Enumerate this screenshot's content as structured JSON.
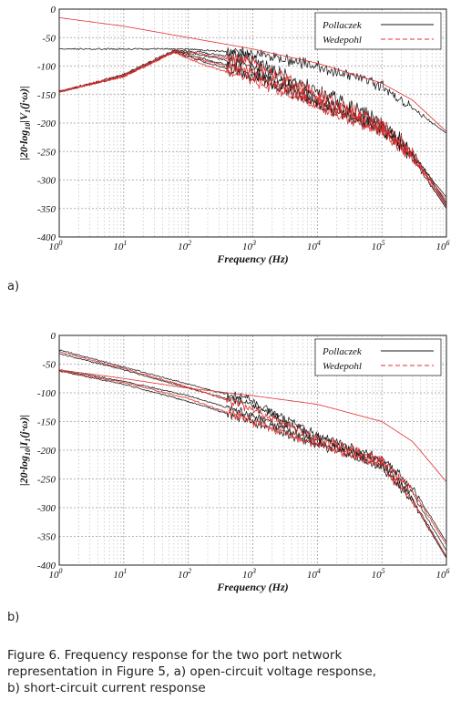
{
  "chart_data": [
    {
      "type": "line",
      "panel_label": "a)",
      "xlabel": "Frequency (Hz)",
      "ylabel_main": "|20·log",
      "ylabel_sub": "10",
      "ylabel_tail": "|V",
      "ylabel_sub2": "1",
      "ylabel_end": "(j·ω)|",
      "xscale": "log",
      "xlim": [
        1,
        1000000
      ],
      "ylim": [
        -400,
        0
      ],
      "x_tick_labels": [
        {
          "base": "10",
          "exp": "0"
        },
        {
          "base": "10",
          "exp": "1"
        },
        {
          "base": "10",
          "exp": "2"
        },
        {
          "base": "10",
          "exp": "3"
        },
        {
          "base": "10",
          "exp": "4"
        },
        {
          "base": "10",
          "exp": "5"
        },
        {
          "base": "10",
          "exp": "6"
        }
      ],
      "y_ticks": [
        0,
        -50,
        -100,
        -150,
        -200,
        -250,
        -300,
        -350,
        -400
      ],
      "y_tick_labels": [
        "0",
        "-50",
        "-100",
        "-150",
        "-200",
        "-250",
        "-300",
        "-350",
        "-400"
      ],
      "grid": true,
      "legend": {
        "placement": "top-right",
        "entries": [
          {
            "label": "Pollaczek",
            "color": "#1a1a1a",
            "dash": "solid"
          },
          {
            "label": "Wedepohl",
            "color": "#e03030",
            "dash": "dashed"
          }
        ]
      },
      "series": [
        {
          "group": "Pollaczek",
          "color": "#1a1a1a",
          "noise": 8,
          "x": [
            1,
            10,
            60,
            150,
            1000,
            5000,
            20000,
            100000,
            300000,
            1000000
          ],
          "y": [
            -145,
            -115,
            -72,
            -75,
            -90,
            -130,
            -160,
            -200,
            -250,
            -340
          ]
        },
        {
          "group": "Pollaczek",
          "color": "#1a1a1a",
          "noise": 8,
          "x": [
            1,
            10,
            60,
            150,
            1000,
            5000,
            20000,
            100000,
            300000,
            1000000
          ],
          "y": [
            -145,
            -117,
            -74,
            -80,
            -100,
            -140,
            -172,
            -205,
            -255,
            -345
          ]
        },
        {
          "group": "Pollaczek",
          "color": "#1a1a1a",
          "noise": 8,
          "x": [
            1,
            10,
            60,
            150,
            1000,
            5000,
            20000,
            100000,
            300000,
            1000000
          ],
          "y": [
            -145,
            -116,
            -73,
            -85,
            -110,
            -148,
            -178,
            -212,
            -262,
            -350
          ]
        },
        {
          "group": "Pollaczek",
          "color": "#1a1a1a",
          "noise": 7,
          "x": [
            1,
            10,
            60,
            150,
            1000,
            5000,
            20000,
            100000,
            300000,
            1000000
          ],
          "y": [
            -145,
            -118,
            -75,
            -90,
            -118,
            -150,
            -180,
            -210,
            -258,
            -330
          ]
        },
        {
          "group": "Pollaczek",
          "color": "#1a1a1a",
          "noise": 6,
          "x": [
            1,
            20,
            100,
            1000,
            10000,
            100000,
            1000000
          ],
          "y": [
            -70,
            -70,
            -70,
            -78,
            -100,
            -135,
            -218
          ]
        },
        {
          "group": "Wedepohl",
          "color": "#e03030",
          "noise": 7,
          "x": [
            1,
            10,
            60,
            150,
            1000,
            5000,
            20000,
            100000,
            300000,
            1000000
          ],
          "y": [
            -145,
            -116,
            -73,
            -78,
            -95,
            -133,
            -165,
            -202,
            -252,
            -342
          ]
        },
        {
          "group": "Wedepohl",
          "color": "#e03030",
          "noise": 7,
          "x": [
            1,
            10,
            60,
            150,
            1000,
            5000,
            20000,
            100000,
            300000,
            1000000
          ],
          "y": [
            -145,
            -118,
            -75,
            -88,
            -112,
            -146,
            -176,
            -208,
            -260,
            -348
          ]
        },
        {
          "group": "Wedepohl",
          "color": "#e03030",
          "noise": 6,
          "x": [
            1,
            10,
            60,
            150,
            1000,
            5000,
            20000,
            100000,
            300000,
            1000000
          ],
          "y": [
            -145,
            -119,
            -76,
            -95,
            -125,
            -155,
            -185,
            -215,
            -262,
            -335
          ]
        },
        {
          "group": "Wedepohl",
          "color": "#e03030",
          "noise": 0,
          "x": [
            1,
            10,
            100,
            1000,
            10000,
            100000,
            300000,
            1000000
          ],
          "y": [
            -15,
            -30,
            -50,
            -70,
            -95,
            -130,
            -160,
            -215
          ]
        }
      ]
    },
    {
      "type": "line",
      "panel_label": "b)",
      "xlabel": "Frequency (Hz)",
      "ylabel_main": "|20·log",
      "ylabel_sub": "10",
      "ylabel_tail": "|I",
      "ylabel_sub2": "1",
      "ylabel_end": "(j·ω)|",
      "xscale": "log",
      "xlim": [
        1,
        1000000
      ],
      "ylim": [
        -400,
        0
      ],
      "x_tick_labels": [
        {
          "base": "10",
          "exp": "0"
        },
        {
          "base": "10",
          "exp": "1"
        },
        {
          "base": "10",
          "exp": "2"
        },
        {
          "base": "10",
          "exp": "3"
        },
        {
          "base": "10",
          "exp": "4"
        },
        {
          "base": "10",
          "exp": "5"
        },
        {
          "base": "10",
          "exp": "6"
        }
      ],
      "y_ticks": [
        0,
        -50,
        -100,
        -150,
        -200,
        -250,
        -300,
        -350,
        -400
      ],
      "y_tick_labels": [
        "0",
        "-50",
        "-100",
        "-150",
        "-200",
        "-250",
        "-300",
        "-350",
        "-400"
      ],
      "grid": true,
      "legend": {
        "placement": "top-right",
        "entries": [
          {
            "label": "Pollaczek",
            "color": "#1a1a1a",
            "dash": "solid"
          },
          {
            "label": "Wedepohl",
            "color": "#e03030",
            "dash": "dashed"
          }
        ]
      },
      "series": [
        {
          "group": "Pollaczek",
          "color": "#1a1a1a",
          "noise": 5,
          "x": [
            1,
            10,
            100,
            1000,
            10000,
            100000,
            300000,
            1000000
          ],
          "y": [
            -25,
            -55,
            -85,
            -115,
            -175,
            -215,
            -265,
            -360
          ]
        },
        {
          "group": "Pollaczek",
          "color": "#1a1a1a",
          "noise": 5,
          "x": [
            1,
            10,
            100,
            1000,
            10000,
            100000,
            300000,
            1000000
          ],
          "y": [
            -32,
            -60,
            -92,
            -122,
            -180,
            -220,
            -275,
            -375
          ]
        },
        {
          "group": "Pollaczek",
          "color": "#1a1a1a",
          "noise": 5,
          "x": [
            1,
            10,
            100,
            1000,
            10000,
            100000,
            300000,
            1000000
          ],
          "y": [
            -60,
            -80,
            -105,
            -140,
            -185,
            -225,
            -285,
            -385
          ]
        },
        {
          "group": "Pollaczek",
          "color": "#1a1a1a",
          "noise": 5,
          "x": [
            1,
            10,
            100,
            1000,
            10000,
            100000,
            300000,
            1000000
          ],
          "y": [
            -62,
            -85,
            -115,
            -150,
            -190,
            -228,
            -290,
            -388
          ]
        },
        {
          "group": "Wedepohl",
          "color": "#e03030",
          "noise": 5,
          "x": [
            1,
            10,
            100,
            1000,
            10000,
            100000,
            300000,
            1000000
          ],
          "y": [
            -28,
            -58,
            -90,
            -128,
            -180,
            -218,
            -270,
            -365
          ]
        },
        {
          "group": "Wedepohl",
          "color": "#e03030",
          "noise": 5,
          "x": [
            1,
            10,
            100,
            1000,
            10000,
            100000,
            300000,
            1000000
          ],
          "y": [
            -62,
            -82,
            -110,
            -150,
            -190,
            -226,
            -288,
            -385
          ]
        },
        {
          "group": "Wedepohl",
          "color": "#e03030",
          "noise": 0,
          "x": [
            1,
            10,
            100,
            1000,
            10000,
            100000,
            300000,
            1000000
          ],
          "y": [
            -60,
            -75,
            -92,
            -105,
            -120,
            -150,
            -185,
            -255
          ]
        }
      ]
    }
  ],
  "caption": {
    "lines": [
      "Figure 6.  Frequency response for the two port network",
      "representation in Figure 5, a) open-circuit voltage response,",
      "b) short-circuit current response"
    ]
  }
}
